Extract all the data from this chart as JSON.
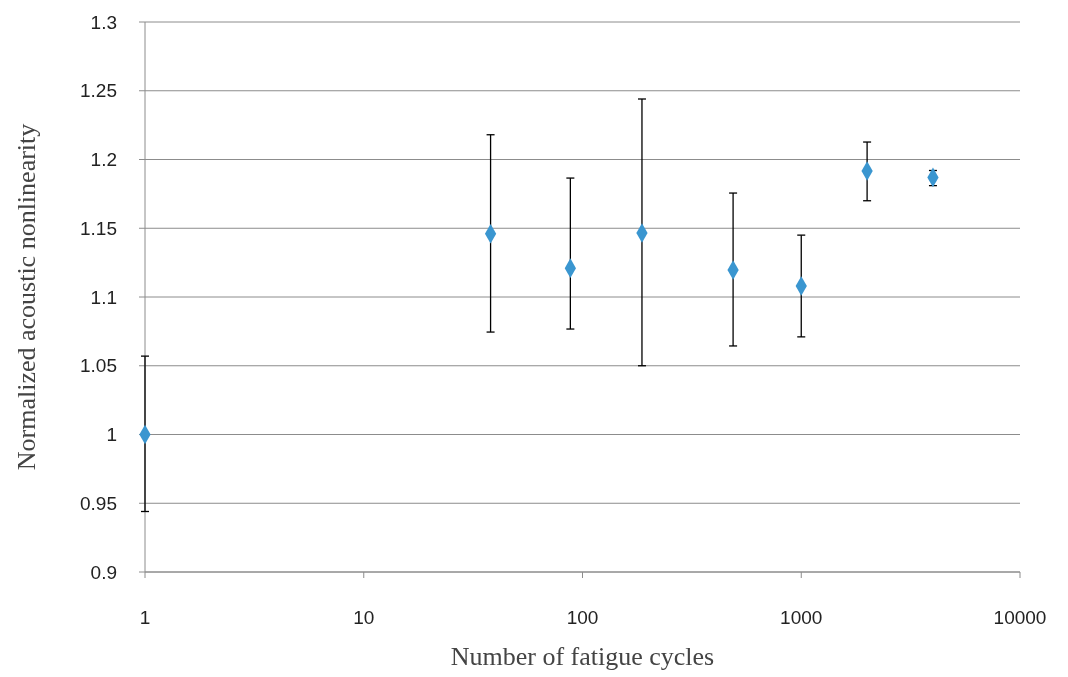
{
  "chart_data": {
    "type": "scatter",
    "xlabel": "Number of fatigue cycles",
    "ylabel": "Normalized acoustic nonlinearity",
    "log": "x",
    "grid": "y",
    "marker": "diamond",
    "xlim": [
      1,
      10000
    ],
    "xticks": [
      1,
      10,
      100,
      1000,
      10000
    ],
    "ylim": [
      0.9,
      1.3
    ],
    "yticks": [
      0.9,
      0.95,
      1,
      1.05,
      1.1,
      1.15,
      1.2,
      1.25,
      1.3
    ],
    "series": [
      {
        "color": "#3a96d0",
        "x": [
          1,
          38,
          88,
          187,
          488,
          1000,
          2000,
          4000
        ],
        "values": [
          1.0,
          1.146,
          1.121,
          1.1465,
          1.1196,
          1.108,
          1.1916,
          1.187
        ],
        "errors": [
          [
            0.944,
            1.057
          ],
          [
            1.0745,
            1.218
          ],
          [
            1.0767,
            1.1865
          ],
          [
            1.05,
            1.244
          ],
          [
            1.0644,
            1.1756
          ],
          [
            1.071,
            1.145
          ],
          [
            1.17,
            1.2127
          ],
          [
            1.181,
            1.192
          ]
        ]
      }
    ]
  }
}
